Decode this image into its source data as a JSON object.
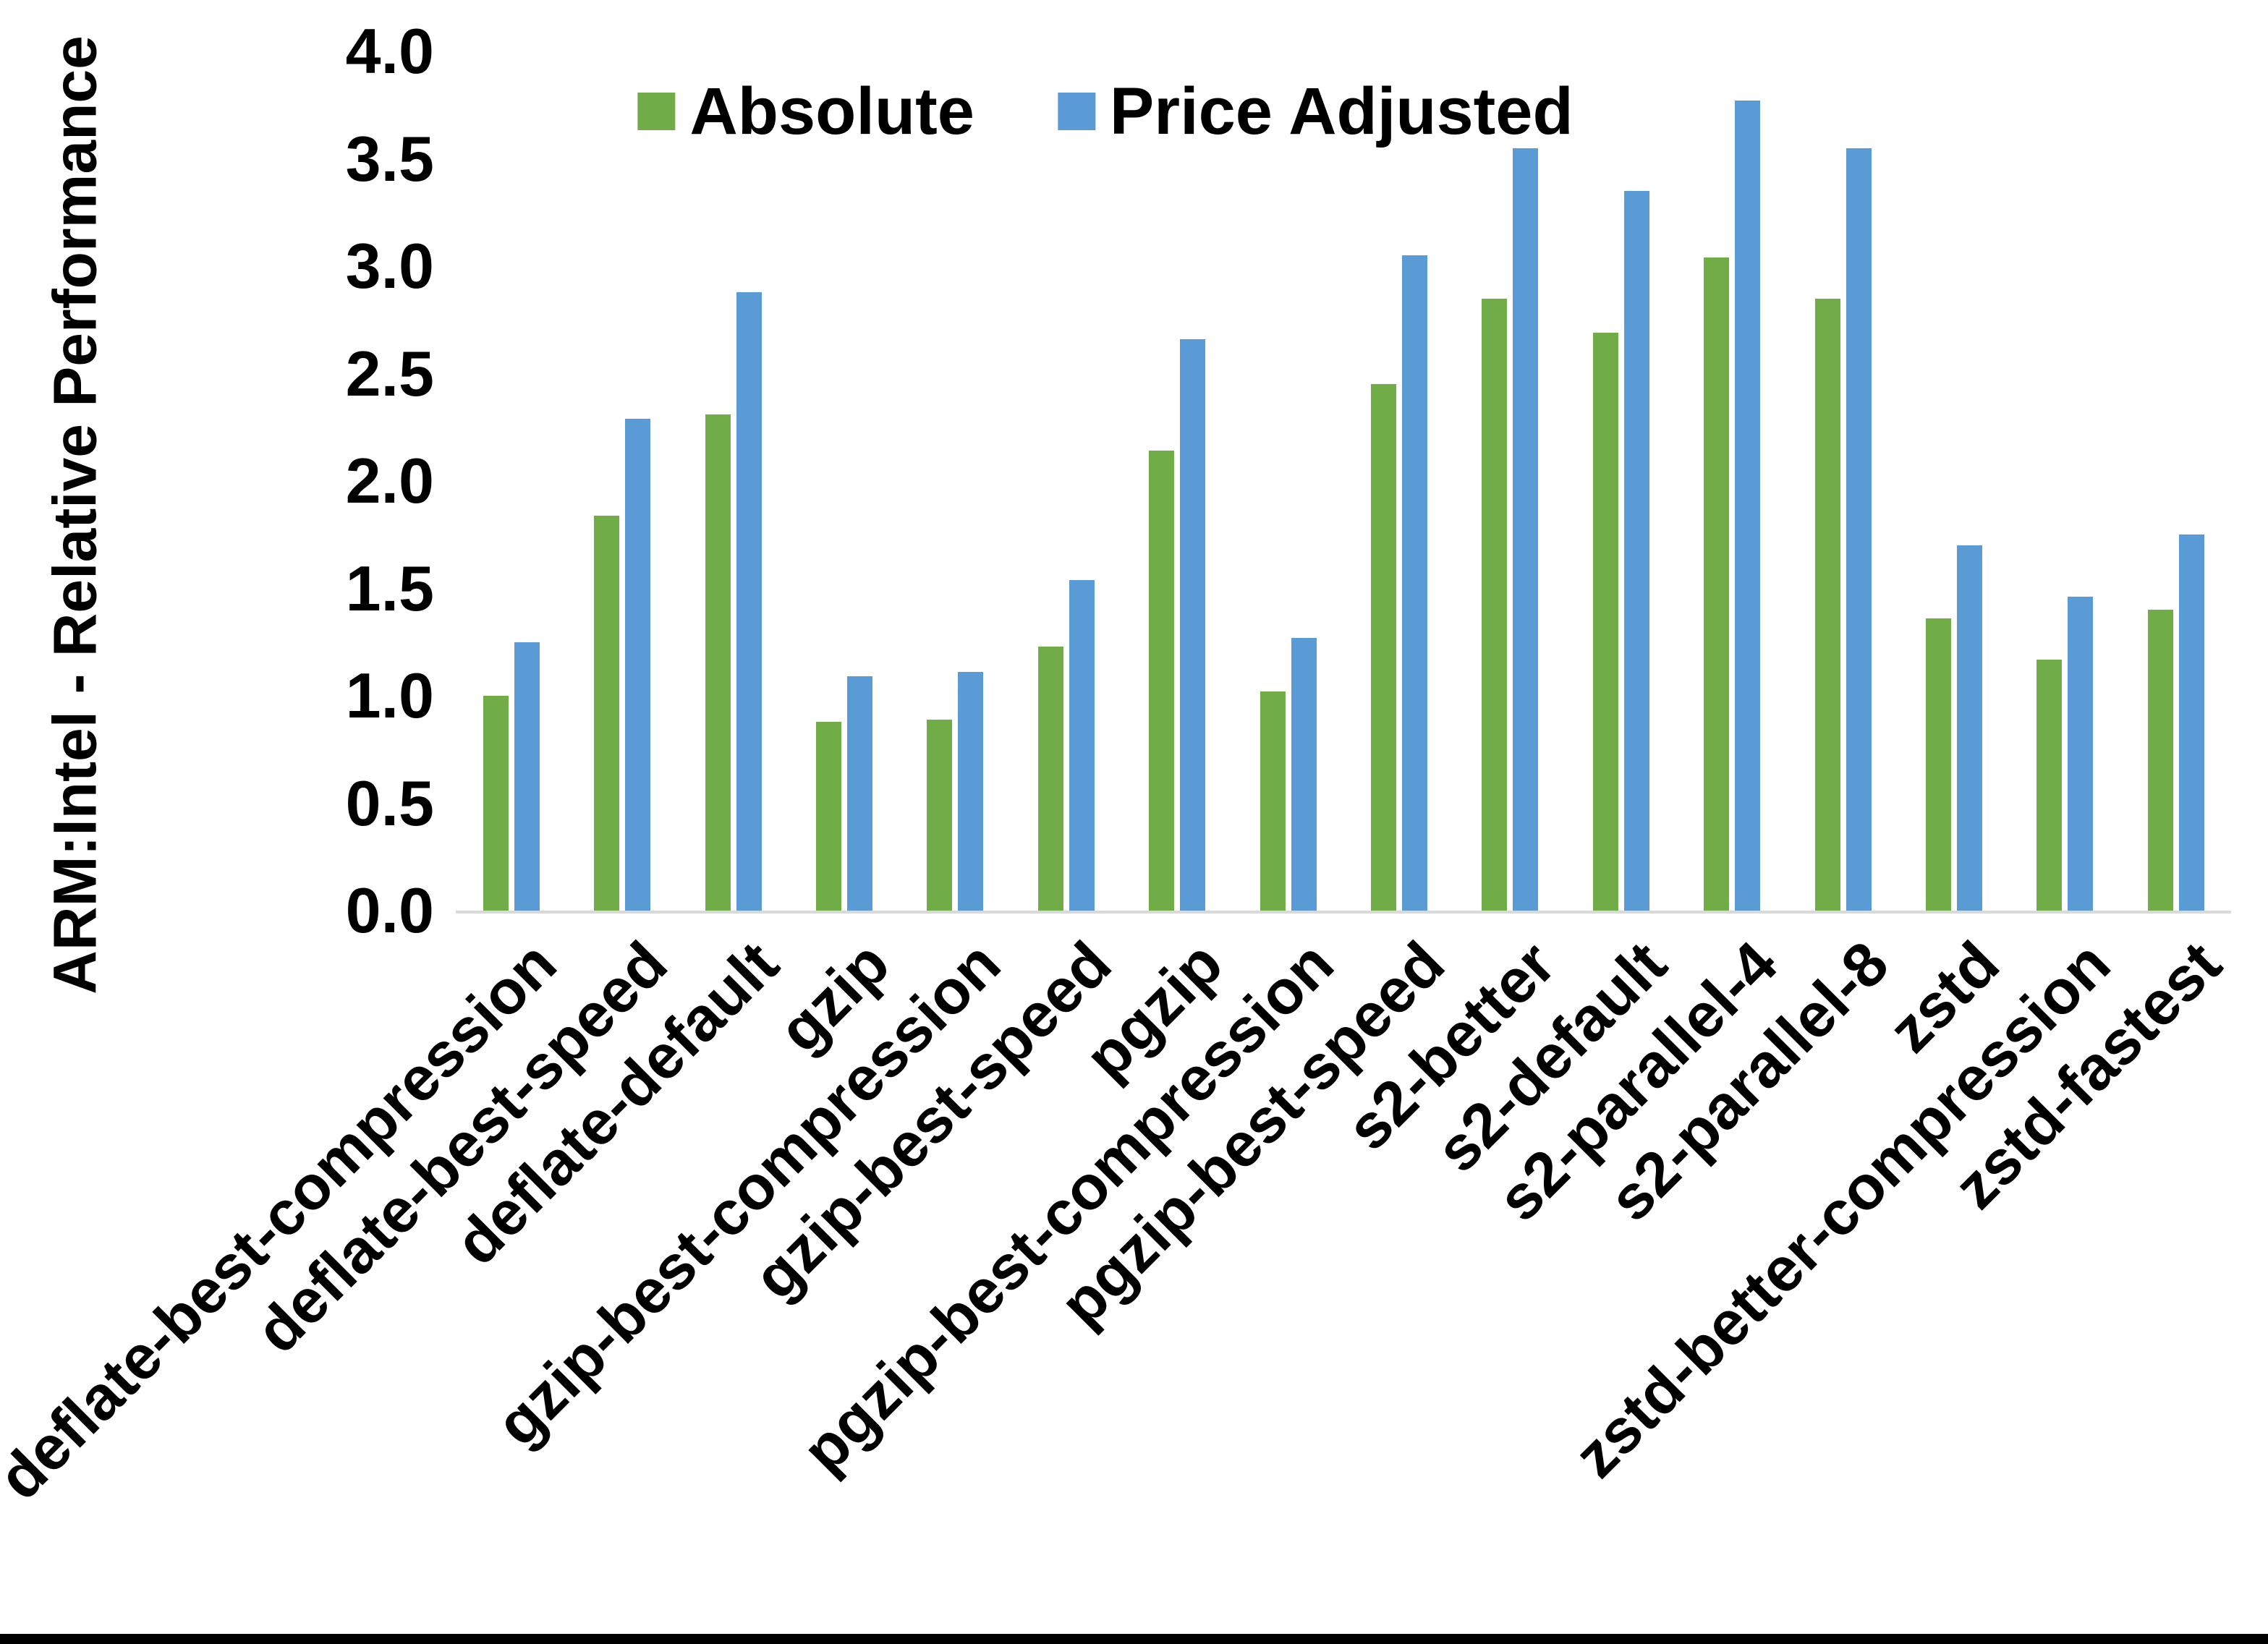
{
  "chart_data": {
    "type": "bar",
    "title": "",
    "xlabel": "",
    "ylabel": "ARM:Intel - Relative Performance",
    "ylim": [
      0.0,
      4.0
    ],
    "ytick_step": 0.5,
    "ytick_labels": [
      "0.0",
      "0.5",
      "1.0",
      "1.5",
      "2.0",
      "2.5",
      "3.0",
      "3.5",
      "4.0"
    ],
    "grid": false,
    "legend_position": "top-center",
    "categories": [
      "deflate-best-compression",
      "deflate-best-speed",
      "deflate-default",
      "gzip",
      "gzip-best-compression",
      "gzip-best-speed",
      "pgzip",
      "pgzip-best-compression",
      "pgzip-best-speed",
      "s2-better",
      "s2-default",
      "s2-parallel-4",
      "s2-parallel-8",
      "zstd",
      "zstd-better-compression",
      "zstd-fastest"
    ],
    "series": [
      {
        "name": "Absolute",
        "color": "#70AD47",
        "values": [
          1.0,
          1.84,
          2.31,
          0.88,
          0.89,
          1.23,
          2.14,
          1.02,
          2.45,
          2.85,
          2.69,
          3.04,
          2.85,
          1.36,
          1.17,
          1.4
        ]
      },
      {
        "name": "Price Adjusted",
        "color": "#5B9BD5",
        "values": [
          1.25,
          2.29,
          2.88,
          1.09,
          1.11,
          1.54,
          2.66,
          1.27,
          3.05,
          3.55,
          3.35,
          3.77,
          3.55,
          1.7,
          1.46,
          1.75
        ]
      }
    ]
  },
  "axis_style": {
    "baseline_color": "#D9D9D9",
    "text_color": "#000000"
  }
}
